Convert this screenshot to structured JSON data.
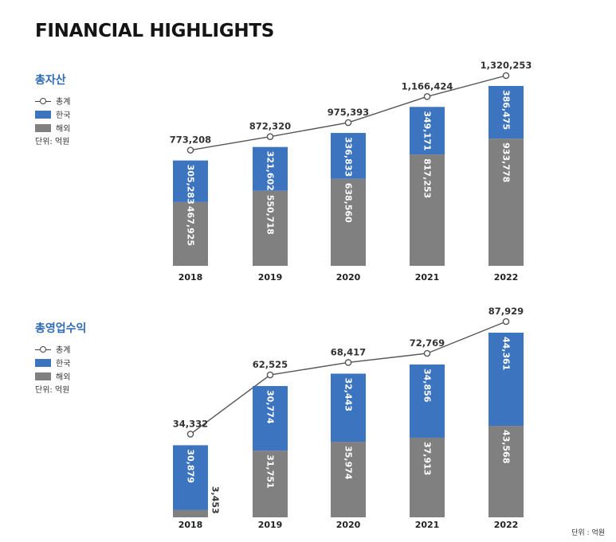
{
  "page_title": "FINANCIAL HIGHLIGHTS",
  "bottom_unit": "단위 : 억원",
  "colors": {
    "korea": "#3c74c0",
    "overseas": "#808080",
    "line": "#555555",
    "title": "#2f6bb5"
  },
  "chart_data": [
    {
      "type": "bar",
      "stacked": true,
      "title": "총자산",
      "categories": [
        "2018",
        "2019",
        "2020",
        "2021",
        "2022"
      ],
      "series": [
        {
          "name": "해외",
          "values": [
            467925,
            550718,
            638560,
            817253,
            933778
          ],
          "color": "#808080"
        },
        {
          "name": "한국",
          "values": [
            305283,
            321602,
            336833,
            349171,
            386475
          ],
          "color": "#3c74c0"
        }
      ],
      "line": {
        "name": "총계",
        "values": [
          773208,
          872320,
          975393,
          1166424,
          1320253
        ]
      },
      "labels": {
        "overseas": [
          "467,925",
          "550,718",
          "638,560",
          "817,253",
          "933,778"
        ],
        "korea": [
          "305,283",
          "321,602",
          "336,833",
          "349,171",
          "386,475"
        ],
        "total": [
          "773,208",
          "872,320",
          "975,393",
          "1,166,424",
          "1,320,253"
        ]
      },
      "legend": {
        "total": "총계",
        "korea": "한국",
        "overseas": "해외",
        "unit": "단위: 억원"
      }
    },
    {
      "type": "bar",
      "stacked": true,
      "title": "총영업수익",
      "categories": [
        "2018",
        "2019",
        "2020",
        "2021",
        "2022"
      ],
      "series": [
        {
          "name": "해외",
          "values": [
            3453,
            31751,
            35974,
            37913,
            43568
          ],
          "color": "#808080"
        },
        {
          "name": "한국",
          "values": [
            30879,
            30774,
            32443,
            34856,
            44361
          ],
          "color": "#3c74c0"
        }
      ],
      "line": {
        "name": "총계",
        "values": [
          34332,
          62525,
          68417,
          72769,
          87929
        ]
      },
      "labels": {
        "overseas": [
          "3,453",
          "31,751",
          "35,974",
          "37,913",
          "43,568"
        ],
        "korea": [
          "30,879",
          "30,774",
          "32,443",
          "34,856",
          "44,361"
        ],
        "total": [
          "34,332",
          "62,525",
          "68,417",
          "72,769",
          "87,929"
        ]
      },
      "legend": {
        "total": "총계",
        "korea": "한국",
        "overseas": "해외",
        "unit": "단위: 억원"
      }
    }
  ]
}
